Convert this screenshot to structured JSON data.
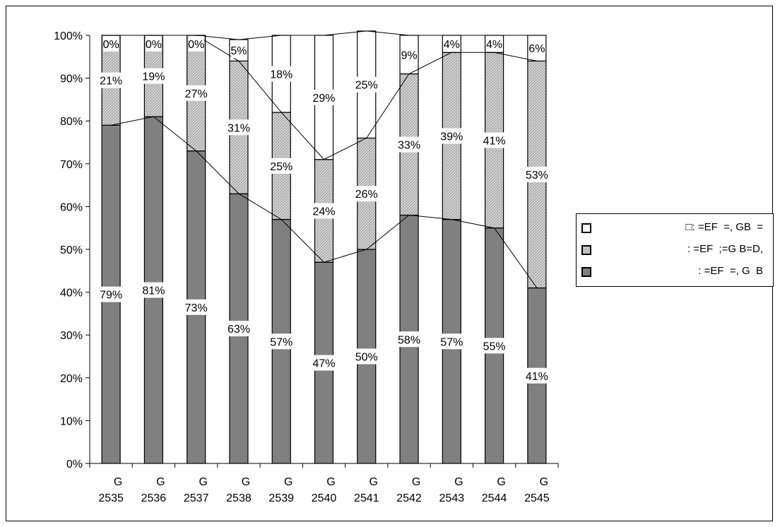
{
  "chart_data": {
    "type": "bar",
    "stacked": true,
    "categories": [
      [
        "G",
        "2535"
      ],
      [
        "G",
        "2536"
      ],
      [
        "G",
        "2537"
      ],
      [
        "G",
        "2538"
      ],
      [
        "G",
        "2539"
      ],
      [
        "G",
        "2540"
      ],
      [
        "G",
        "2541"
      ],
      [
        "G",
        "2542"
      ],
      [
        "G",
        "2543"
      ],
      [
        "G",
        "2544"
      ],
      [
        "G",
        "2545"
      ]
    ],
    "series": [
      {
        "name": ": =EF  =, G  B",
        "color": "#808080",
        "values": [
          79,
          81,
          73,
          63,
          57,
          47,
          50,
          58,
          57,
          55,
          41
        ],
        "labels": [
          "79%",
          "81%",
          "73%",
          "63%",
          "57%",
          "47%",
          "50%",
          "58%",
          "57%",
          "55%",
          "41%"
        ]
      },
      {
        "name": ": =EF  ;=G B=D,",
        "color": "#c0c0c0",
        "values": [
          21,
          19,
          27,
          31,
          25,
          24,
          26,
          33,
          39,
          41,
          53
        ],
        "labels": [
          "21%",
          "19%",
          "27%",
          "31%",
          "25%",
          "24%",
          "26%",
          "33%",
          "39%",
          "41%",
          "53%"
        ]
      },
      {
        "name": "□: =EF  =, GB  =",
        "color": "#ffffff",
        "values": [
          0,
          0,
          0,
          5,
          18,
          29,
          25,
          9,
          4,
          4,
          6
        ],
        "labels": [
          "0%",
          "0%",
          "0%",
          "5%",
          "18%",
          "29%",
          "25%",
          "9%",
          "4%",
          "4%",
          "6%"
        ]
      }
    ],
    "yticks": [
      "0%",
      "10%",
      "20%",
      "30%",
      "40%",
      "50%",
      "60%",
      "70%",
      "80%",
      "90%",
      "100%"
    ],
    "ylim": [
      0,
      100
    ],
    "series_lines": true,
    "grid": false,
    "legend_position": "right",
    "title": "",
    "xlabel": "",
    "ylabel": ""
  }
}
